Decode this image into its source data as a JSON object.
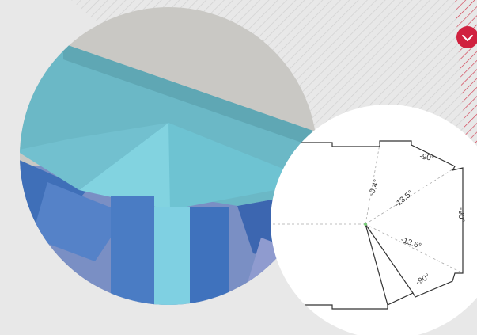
{
  "diagram": {
    "labels": [
      "-90°",
      "-9.4°",
      "-13.5°",
      "-90°",
      "-13.6°",
      "-90°"
    ]
  }
}
